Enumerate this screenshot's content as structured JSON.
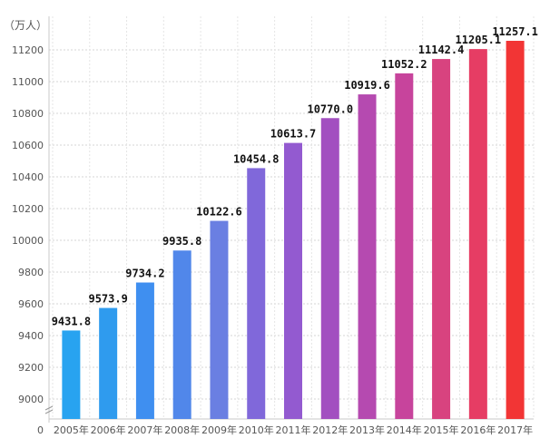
{
  "chart_data": {
    "type": "bar",
    "unit": "（万人）",
    "categories": [
      "2005年",
      "2006年",
      "2007年",
      "2008年",
      "2009年",
      "2010年",
      "2011年",
      "2012年",
      "2013年",
      "2014年",
      "2015年",
      "2016年",
      "2017年"
    ],
    "values": [
      9431.8,
      9573.9,
      9734.2,
      9935.8,
      10122.6,
      10454.8,
      10613.7,
      10770.0,
      10919.6,
      11052.2,
      11142.4,
      11205.1,
      11257.1
    ],
    "value_labels": [
      "9431.8",
      "9573.9",
      "9734.2",
      "9935.8",
      "10122.6",
      "10454.8",
      "10613.7",
      "10770.0",
      "10919.6",
      "11052.2",
      "11142.4",
      "11205.1",
      "11257.1"
    ],
    "y_ticks": [
      "0",
      "9000",
      "9200",
      "9400",
      "9600",
      "9800",
      "10000",
      "10200",
      "10400",
      "10600",
      "10800",
      "11000",
      "11200"
    ],
    "ylim": [
      8900,
      11350
    ],
    "y_axis_break": true,
    "grid": true,
    "colors": [
      "#28a3f0",
      "#2f9bee",
      "#3f8ff0",
      "#5187ea",
      "#6a7fe2",
      "#8068da",
      "#935ad0",
      "#a24fc0",
      "#b54ab0",
      "#c7449c",
      "#d8437f",
      "#e63d64",
      "#f23535"
    ]
  }
}
